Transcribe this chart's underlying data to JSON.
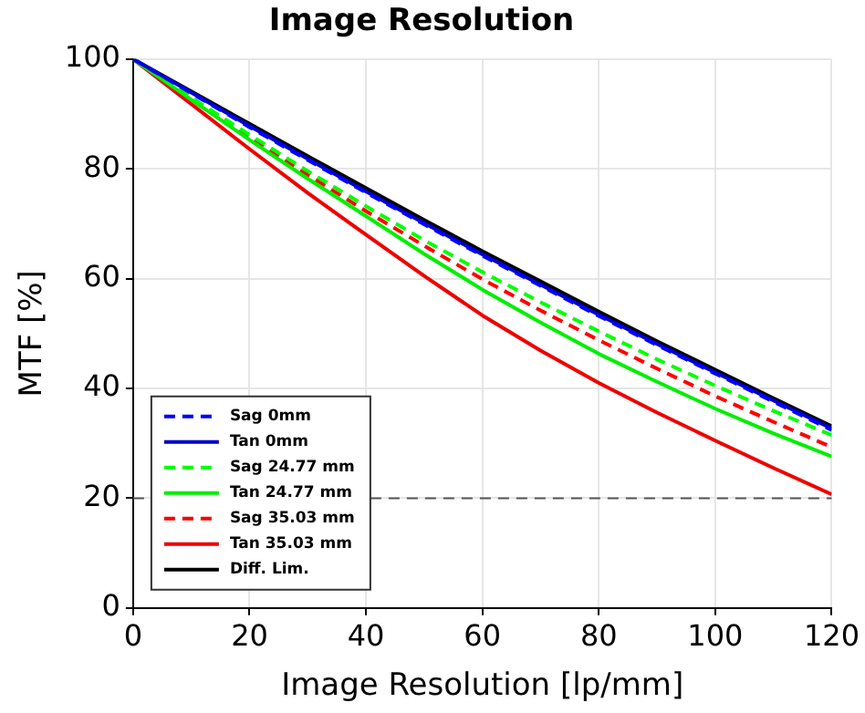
{
  "chart_data": {
    "type": "line",
    "title": "Image Resolution",
    "xlabel": "Image Resolution [lp/mm]",
    "ylabel": "MTF [%]",
    "x": [
      0,
      10,
      20,
      30,
      40,
      50,
      60,
      70,
      80,
      90,
      100,
      110,
      120
    ],
    "xlim": [
      0,
      120
    ],
    "xticks": [
      0,
      20,
      40,
      60,
      80,
      100,
      120
    ],
    "ylim": [
      0,
      100
    ],
    "yticks": [
      0,
      20,
      40,
      60,
      80,
      100
    ],
    "grid": true,
    "legend": "bottom left",
    "marker": "none",
    "series": [
      {
        "name": "Sag 0mm",
        "color": "#0000ff",
        "line_style": "dashed",
        "values": [
          100,
          93.8,
          87.6,
          81.6,
          75.7,
          69.9,
          64.2,
          58.7,
          53.2,
          47.9,
          42.7,
          37.6,
          32.4
        ]
      },
      {
        "name": "Tan 0mm",
        "color": "#0000cc",
        "line_style": "solid",
        "values": [
          100,
          93.9,
          87.8,
          81.8,
          75.9,
          70.1,
          64.4,
          58.9,
          53.4,
          48.1,
          42.9,
          37.8,
          32.7
        ]
      },
      {
        "name": "Sag 24.77 mm",
        "color": "#00ff00",
        "line_style": "dashed",
        "values": [
          100,
          93,
          86.2,
          79.6,
          73.2,
          67,
          61.2,
          55.7,
          50.4,
          45.3,
          40.5,
          35.9,
          31.5
        ]
      },
      {
        "name": "Tan 24.77 mm",
        "color": "#00ee00",
        "line_style": "solid",
        "values": [
          100,
          92.6,
          85.3,
          78.2,
          71.4,
          64.5,
          58,
          52,
          46.3,
          41.2,
          36.3,
          31.8,
          27.6
        ]
      },
      {
        "name": "Sag 35.03 mm",
        "color": "#ff0000",
        "line_style": "dashed",
        "values": [
          100,
          92.8,
          85.7,
          78.9,
          72.3,
          66,
          59.9,
          54.2,
          48.8,
          43.6,
          38.6,
          33.9,
          29.3
        ]
      },
      {
        "name": "Tan 35.03 mm",
        "color": "#ee0000",
        "line_style": "solid",
        "values": [
          100,
          91.8,
          83.6,
          75.6,
          68,
          60.5,
          53.3,
          46.9,
          41,
          35.6,
          30.5,
          25.5,
          20.7
        ]
      },
      {
        "name": "Diff. Lim.",
        "color": "#000000",
        "line_style": "solid",
        "values": [
          100,
          94.1,
          88.2,
          82.3,
          76.5,
          70.7,
          65,
          59.5,
          54,
          48.6,
          43.4,
          38.2,
          33.1
        ]
      }
    ],
    "ref_lines": [
      {
        "axis": "y",
        "value": 20,
        "color": "#555555",
        "line_style": "dashed"
      }
    ]
  }
}
